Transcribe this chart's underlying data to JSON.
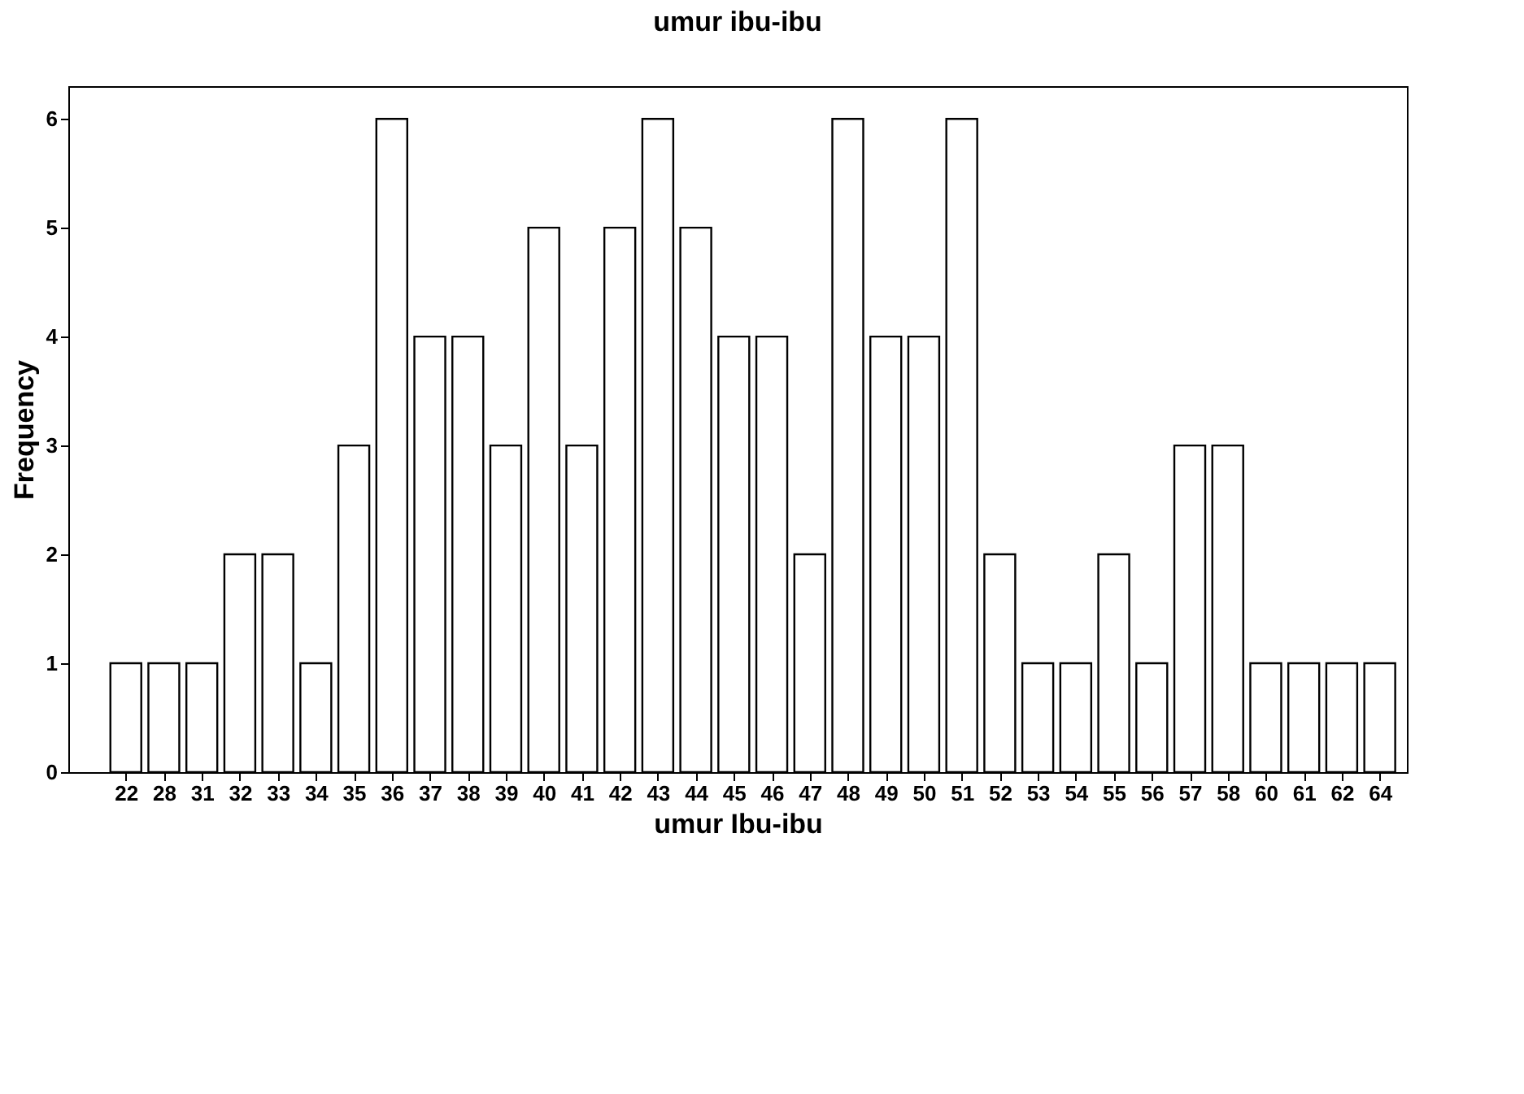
{
  "chart_data": {
    "type": "bar",
    "title": "umur ibu-ibu",
    "xlabel": "umur Ibu-ibu",
    "ylabel": "Frequency",
    "categories": [
      "22",
      "28",
      "31",
      "32",
      "33",
      "34",
      "35",
      "36",
      "37",
      "38",
      "39",
      "40",
      "41",
      "42",
      "43",
      "44",
      "45",
      "46",
      "47",
      "48",
      "49",
      "50",
      "51",
      "52",
      "53",
      "54",
      "55",
      "56",
      "57",
      "58",
      "60",
      "61",
      "62",
      "64"
    ],
    "values": [
      1,
      1,
      1,
      2,
      2,
      1,
      3,
      6,
      4,
      4,
      3,
      5,
      3,
      5,
      6,
      5,
      4,
      4,
      2,
      6,
      4,
      4,
      6,
      2,
      1,
      1,
      2,
      1,
      3,
      3,
      1,
      1,
      1,
      1
    ],
    "color": "#ffffff",
    "ylim": [
      0,
      6.3
    ],
    "yticks": [
      0,
      1,
      2,
      3,
      4,
      5,
      6
    ],
    "grid": false
  }
}
